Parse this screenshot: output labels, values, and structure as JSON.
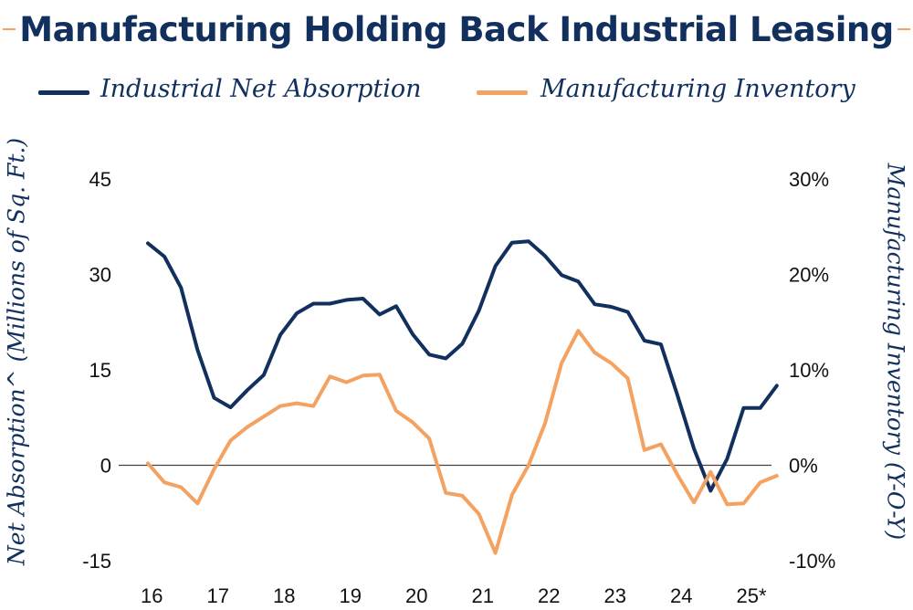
{
  "chart_data": {
    "type": "line",
    "title": "Manufacturing Holding Back Industrial Leasing",
    "y_left_label": "Net Absorption^ (Millions of Sq. Ft.)",
    "y_right_label": "Manufacturing Inventory (Y-O-Y)",
    "x_tick_labels": [
      "16",
      "17",
      "18",
      "19",
      "20",
      "21",
      "22",
      "23",
      "24",
      "25*"
    ],
    "y_left_ticks": [
      "45",
      "30",
      "15",
      "0",
      "-15"
    ],
    "y_right_ticks": [
      "30%",
      "20%",
      "10%",
      "0%",
      "-10%"
    ],
    "y_left_range": [
      -15,
      45
    ],
    "y_right_range": [
      -10,
      30
    ],
    "legend": "top",
    "grid": false,
    "x_start": 2016.0,
    "x_step": 0.25,
    "series": [
      {
        "name": "Industrial Net Absorption",
        "axis": "left",
        "color": "#12305e",
        "values": [
          34.9,
          32.8,
          27.9,
          18.1,
          10.6,
          9.1,
          11.8,
          14.2,
          20.5,
          23.9,
          25.4,
          25.4,
          26.0,
          26.2,
          23.7,
          25.0,
          20.6,
          17.4,
          16.8,
          19.1,
          24.3,
          31.3,
          35.0,
          35.2,
          32.9,
          29.9,
          28.9,
          25.3,
          24.9,
          24.1,
          19.6,
          19.0,
          11.0,
          2.6,
          -4.0,
          1.0,
          9.0,
          9.0,
          12.5
        ]
      },
      {
        "name": "Manufacturing Inventory",
        "axis": "right",
        "color": "#f4a261",
        "values": [
          0.2,
          -1.8,
          -2.3,
          -4.0,
          -0.4,
          2.6,
          4.0,
          5.1,
          6.2,
          6.5,
          6.2,
          9.3,
          8.7,
          9.4,
          9.5,
          5.7,
          4.5,
          2.8,
          -2.9,
          -3.2,
          -5.1,
          -9.2,
          -3.1,
          0.0,
          4.4,
          10.7,
          14.1,
          11.8,
          10.7,
          9.1,
          1.6,
          2.2,
          -1.0,
          -3.9,
          -0.7,
          -4.1,
          -4.0,
          -1.8,
          -1.1
        ]
      }
    ]
  }
}
